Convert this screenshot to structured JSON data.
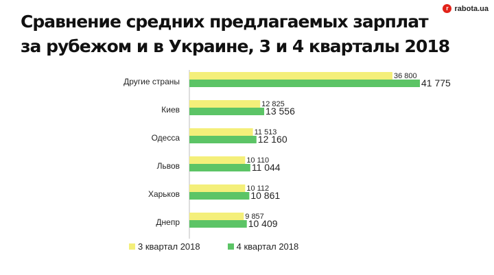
{
  "header": {
    "title_line1": "Сравнение средних предлагаемых зарплат",
    "title_line2": "за рубежом и в Украине, 3 и 4 кварталы 2018",
    "brand_icon": "r",
    "brand": "rabota.ua"
  },
  "colors": {
    "q3": "#f4ef7a",
    "q4": "#5cc466",
    "axis": "#bdbdbd"
  },
  "chart_data": {
    "type": "bar",
    "orientation": "horizontal",
    "title": "Сравнение средних предлагаемых зарплат за рубежом и в Украине, 3 и 4 кварталы 2018",
    "categories": [
      "Другие страны",
      "Киев",
      "Одесса",
      "Львов",
      "Харьков",
      "Днепр"
    ],
    "series": [
      {
        "name": "3 квартал 2018",
        "values": [
          36800,
          12825,
          11513,
          10110,
          10112,
          9857
        ],
        "labels": [
          "36 800",
          "12 825",
          "11 513",
          "10 110",
          "10 112",
          "9 857"
        ]
      },
      {
        "name": "4 квартал 2018",
        "values": [
          41775,
          13556,
          12160,
          11044,
          10861,
          10409
        ],
        "labels": [
          "41 775",
          "13 556",
          "12 160",
          "11 044",
          "10 861",
          "10 409"
        ]
      }
    ],
    "legend_position": "bottom",
    "grid": false
  }
}
